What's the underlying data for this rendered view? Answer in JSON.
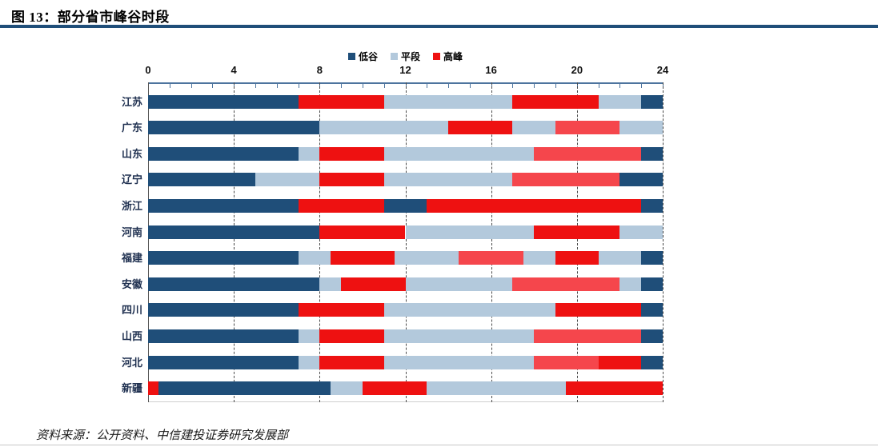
{
  "figure": {
    "title": "图 13：部分省市峰谷时段",
    "source": "资料来源：公开资料、中信建投证券研究发展部"
  },
  "colors": {
    "accent_rule": "#1F4E79",
    "valley": "#1F4E79",
    "flat": "#B3C9DC",
    "peak": "#EE1111",
    "peak_light": "#F5464C"
  },
  "legend": [
    {
      "key": "valley",
      "label": "低谷"
    },
    {
      "key": "flat",
      "label": "平段"
    },
    {
      "key": "peak",
      "label": "高峰"
    }
  ],
  "chart_data": {
    "type": "bar",
    "orientation": "horizontal-stacked-timeline",
    "title": "部分省市峰谷时段",
    "xlabel": "",
    "ylabel": "",
    "unit": "hour-of-day",
    "xlim": [
      0,
      24
    ],
    "x_ticks": [
      0,
      4,
      8,
      12,
      16,
      20,
      24
    ],
    "minor_tick_step": 1,
    "grid": "vertical-dashed-at-major-ticks",
    "legend_position": "top-center",
    "kind_labels": {
      "valley": "低谷",
      "flat": "平段",
      "peak": "高峰",
      "peak_light": "高峰"
    },
    "rows": [
      {
        "name": "江苏",
        "segments": [
          {
            "start": 0,
            "end": 7,
            "kind": "valley"
          },
          {
            "start": 7,
            "end": 11,
            "kind": "peak"
          },
          {
            "start": 11,
            "end": 17,
            "kind": "flat"
          },
          {
            "start": 17,
            "end": 21,
            "kind": "peak"
          },
          {
            "start": 21,
            "end": 23,
            "kind": "flat"
          },
          {
            "start": 23,
            "end": 24,
            "kind": "valley"
          }
        ]
      },
      {
        "name": "广东",
        "segments": [
          {
            "start": 0,
            "end": 8,
            "kind": "valley"
          },
          {
            "start": 8,
            "end": 14,
            "kind": "flat"
          },
          {
            "start": 14,
            "end": 17,
            "kind": "peak"
          },
          {
            "start": 17,
            "end": 19,
            "kind": "flat"
          },
          {
            "start": 19,
            "end": 22,
            "kind": "peak_light"
          },
          {
            "start": 22,
            "end": 24,
            "kind": "flat"
          }
        ]
      },
      {
        "name": "山东",
        "segments": [
          {
            "start": 0,
            "end": 7,
            "kind": "valley"
          },
          {
            "start": 7,
            "end": 8,
            "kind": "flat"
          },
          {
            "start": 8,
            "end": 11,
            "kind": "peak"
          },
          {
            "start": 11,
            "end": 18,
            "kind": "flat"
          },
          {
            "start": 18,
            "end": 23,
            "kind": "peak_light"
          },
          {
            "start": 23,
            "end": 24,
            "kind": "valley"
          }
        ]
      },
      {
        "name": "辽宁",
        "segments": [
          {
            "start": 0,
            "end": 5,
            "kind": "valley"
          },
          {
            "start": 5,
            "end": 8,
            "kind": "flat"
          },
          {
            "start": 8,
            "end": 11,
            "kind": "peak"
          },
          {
            "start": 11,
            "end": 17,
            "kind": "flat"
          },
          {
            "start": 17,
            "end": 22,
            "kind": "peak_light"
          },
          {
            "start": 22,
            "end": 24,
            "kind": "valley"
          }
        ]
      },
      {
        "name": "浙江",
        "segments": [
          {
            "start": 0,
            "end": 7,
            "kind": "valley"
          },
          {
            "start": 7,
            "end": 11,
            "kind": "peak"
          },
          {
            "start": 11,
            "end": 13,
            "kind": "valley"
          },
          {
            "start": 13,
            "end": 23,
            "kind": "peak"
          },
          {
            "start": 23,
            "end": 24,
            "kind": "valley"
          }
        ]
      },
      {
        "name": "河南",
        "segments": [
          {
            "start": 0,
            "end": 8,
            "kind": "valley"
          },
          {
            "start": 8,
            "end": 12,
            "kind": "peak"
          },
          {
            "start": 12,
            "end": 18,
            "kind": "flat"
          },
          {
            "start": 18,
            "end": 22,
            "kind": "peak"
          },
          {
            "start": 22,
            "end": 24,
            "kind": "flat"
          }
        ]
      },
      {
        "name": "福建",
        "segments": [
          {
            "start": 0,
            "end": 7,
            "kind": "valley"
          },
          {
            "start": 7,
            "end": 8.5,
            "kind": "flat"
          },
          {
            "start": 8.5,
            "end": 11.5,
            "kind": "peak"
          },
          {
            "start": 11.5,
            "end": 14.5,
            "kind": "flat"
          },
          {
            "start": 14.5,
            "end": 17.5,
            "kind": "peak_light"
          },
          {
            "start": 17.5,
            "end": 19,
            "kind": "flat"
          },
          {
            "start": 19,
            "end": 21,
            "kind": "peak"
          },
          {
            "start": 21,
            "end": 23,
            "kind": "flat"
          },
          {
            "start": 23,
            "end": 24,
            "kind": "valley"
          }
        ]
      },
      {
        "name": "安徽",
        "segments": [
          {
            "start": 0,
            "end": 8,
            "kind": "valley"
          },
          {
            "start": 8,
            "end": 9,
            "kind": "flat"
          },
          {
            "start": 9,
            "end": 12,
            "kind": "peak"
          },
          {
            "start": 12,
            "end": 17,
            "kind": "flat"
          },
          {
            "start": 17,
            "end": 22,
            "kind": "peak_light"
          },
          {
            "start": 22,
            "end": 23,
            "kind": "flat"
          },
          {
            "start": 23,
            "end": 24,
            "kind": "valley"
          }
        ]
      },
      {
        "name": "四川",
        "segments": [
          {
            "start": 0,
            "end": 7,
            "kind": "valley"
          },
          {
            "start": 7,
            "end": 11,
            "kind": "peak"
          },
          {
            "start": 11,
            "end": 19,
            "kind": "flat"
          },
          {
            "start": 19,
            "end": 23,
            "kind": "peak"
          },
          {
            "start": 23,
            "end": 24,
            "kind": "valley"
          }
        ]
      },
      {
        "name": "山西",
        "segments": [
          {
            "start": 0,
            "end": 7,
            "kind": "valley"
          },
          {
            "start": 7,
            "end": 8,
            "kind": "flat"
          },
          {
            "start": 8,
            "end": 11,
            "kind": "peak"
          },
          {
            "start": 11,
            "end": 18,
            "kind": "flat"
          },
          {
            "start": 18,
            "end": 23,
            "kind": "peak_light"
          },
          {
            "start": 23,
            "end": 24,
            "kind": "valley"
          }
        ]
      },
      {
        "name": "河北",
        "segments": [
          {
            "start": 0,
            "end": 7,
            "kind": "valley"
          },
          {
            "start": 7,
            "end": 8,
            "kind": "flat"
          },
          {
            "start": 8,
            "end": 11,
            "kind": "peak"
          },
          {
            "start": 11,
            "end": 18,
            "kind": "flat"
          },
          {
            "start": 18,
            "end": 21,
            "kind": "peak_light"
          },
          {
            "start": 21,
            "end": 23,
            "kind": "peak"
          },
          {
            "start": 23,
            "end": 24,
            "kind": "valley"
          }
        ]
      },
      {
        "name": "新疆",
        "segments": [
          {
            "start": 0,
            "end": 0.5,
            "kind": "peak"
          },
          {
            "start": 0.5,
            "end": 8.5,
            "kind": "valley"
          },
          {
            "start": 8.5,
            "end": 10,
            "kind": "flat"
          },
          {
            "start": 10,
            "end": 13,
            "kind": "peak"
          },
          {
            "start": 13,
            "end": 19.5,
            "kind": "flat"
          },
          {
            "start": 19.5,
            "end": 24,
            "kind": "peak"
          }
        ]
      }
    ]
  }
}
